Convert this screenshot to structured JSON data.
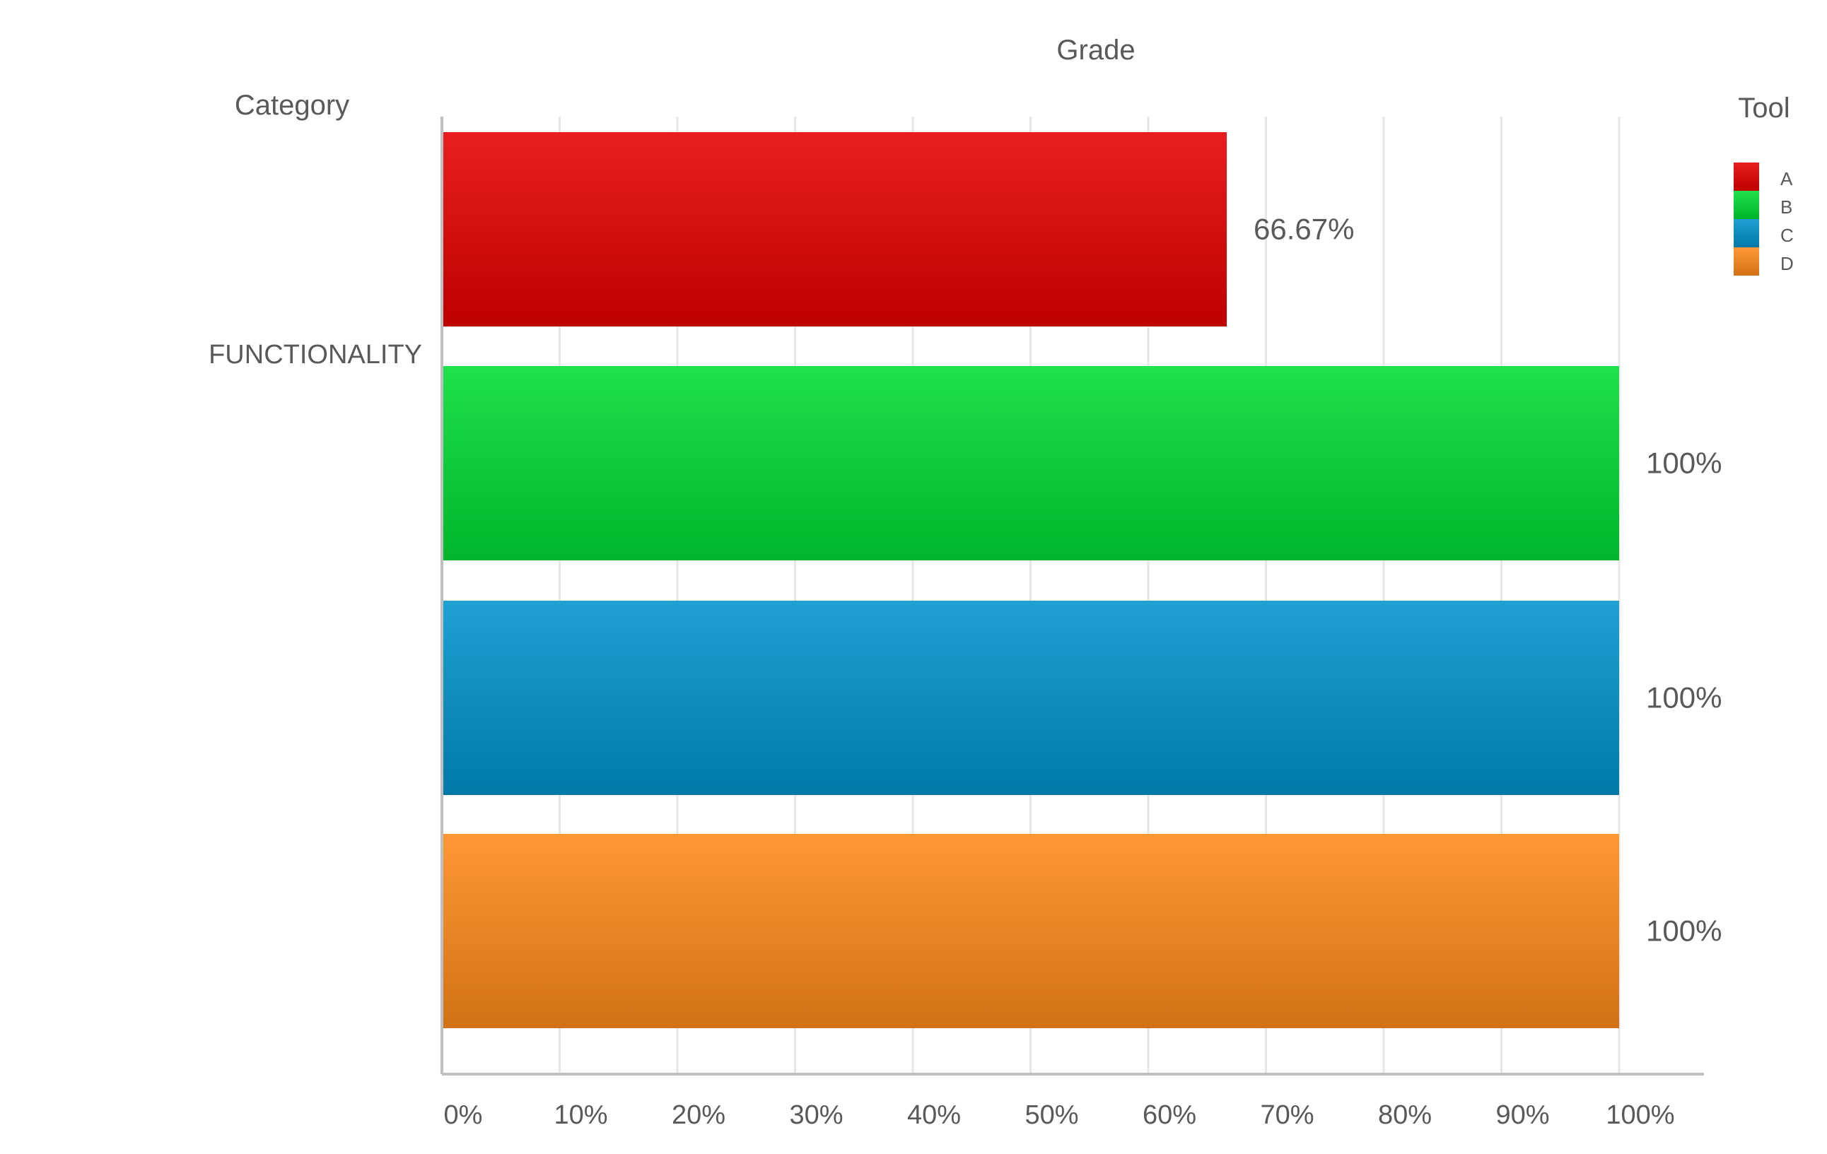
{
  "chart_data": {
    "type": "bar",
    "orientation": "horizontal",
    "title": "Grade",
    "ylabel": "Category",
    "categories": [
      "FUNCTIONALITY"
    ],
    "series": [
      {
        "name": "A",
        "values": [
          66.67
        ],
        "label": "66.67%",
        "color": "#e60000"
      },
      {
        "name": "B",
        "values": [
          100
        ],
        "label": "100%",
        "color": "#00dd33"
      },
      {
        "name": "C",
        "values": [
          100
        ],
        "label": "100%",
        "color": "#0094cc"
      },
      {
        "name": "D",
        "values": [
          100
        ],
        "label": "100%",
        "color": "#ff8a1a"
      }
    ],
    "xlim": [
      0,
      100
    ],
    "x_ticks": [
      "0%",
      "10%",
      "20%",
      "30%",
      "40%",
      "50%",
      "60%",
      "70%",
      "80%",
      "90%",
      "100%"
    ],
    "grid": true,
    "legend": {
      "title": "Tool",
      "position": "top-right"
    }
  }
}
